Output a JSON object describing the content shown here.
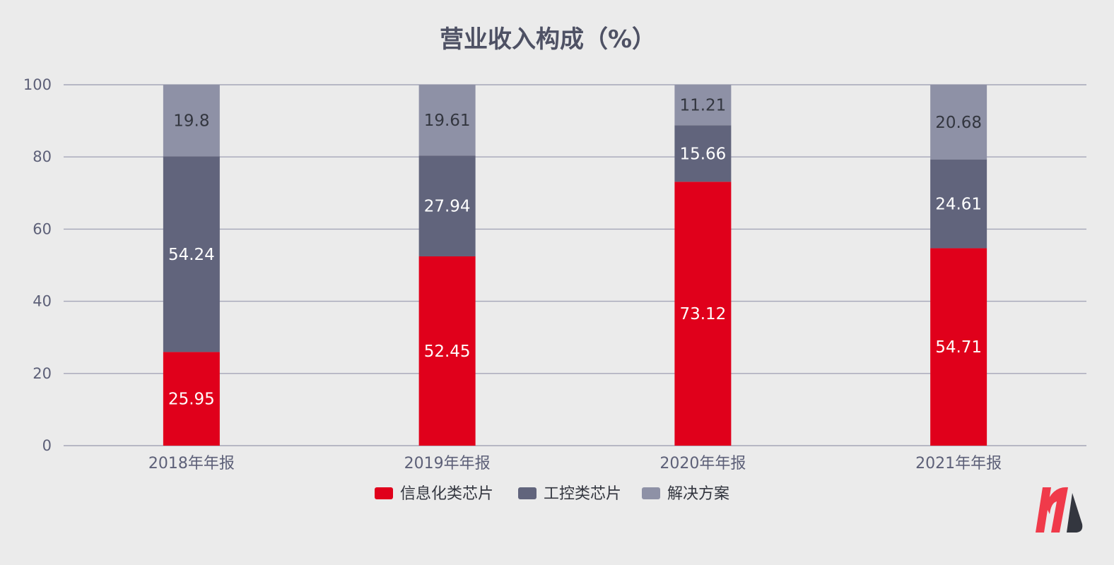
{
  "chart_data": {
    "type": "bar",
    "stacked": true,
    "title": "营业收入构成（%）",
    "categories": [
      "2018年年报",
      "2019年年报",
      "2020年年报",
      "2021年年报"
    ],
    "series": [
      {
        "name": "信息化类芯片",
        "color": "#e0001b",
        "label_color": "#ffffff",
        "values": [
          25.95,
          52.45,
          73.12,
          54.71
        ]
      },
      {
        "name": "工控类芯片",
        "color": "#61647c",
        "label_color": "#ffffff",
        "values": [
          54.24,
          27.94,
          15.66,
          24.61
        ]
      },
      {
        "name": "解决方案",
        "color": "#8e91a6",
        "label_color": "#33363f",
        "values": [
          19.8,
          19.61,
          11.21,
          20.68
        ]
      }
    ],
    "yticks": [
      "0",
      "20",
      "40",
      "60",
      "80",
      "100"
    ],
    "ylim": [
      0,
      100
    ],
    "grid": true,
    "legend": "bottom-center"
  },
  "logo": {
    "name": "brand-logo-icon",
    "colors": [
      "#f03a4a",
      "#33363f"
    ]
  }
}
